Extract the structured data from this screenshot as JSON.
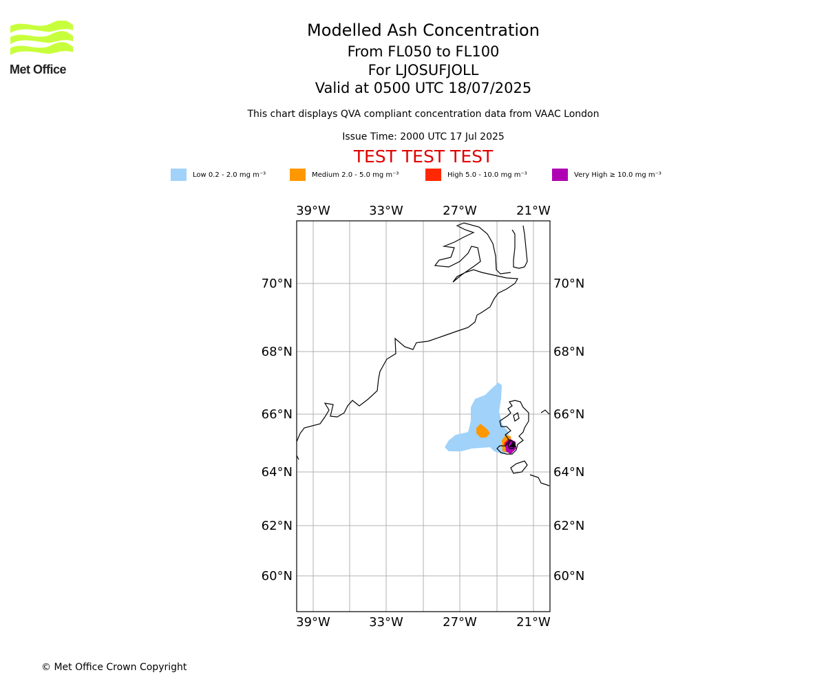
{
  "header": {
    "title_line1": "Modelled Ash Concentration",
    "title_line2": "From FL050 to FL100",
    "title_line3": "For LJOSUFJOLL",
    "title_line4": "Valid at 0500 UTC 18/07/2025",
    "qva_note": "This chart displays QVA compliant concentration data from VAAC London",
    "issue_time": "Issue Time: 2000 UTC 17 Jul 2025",
    "test_banner": "TEST TEST TEST"
  },
  "logo": {
    "text": "Met Office",
    "color": "#c8ff3c"
  },
  "legend": [
    {
      "label": "Low 0.2 - 2.0 mg m⁻³",
      "color": "#a0d2fa"
    },
    {
      "label": "Medium 2.0 - 5.0 mg m⁻³",
      "color": "#ff9800"
    },
    {
      "label": "High 5.0 - 10.0 mg m⁻³",
      "color": "#ff2800"
    },
    {
      "label": "Very High ≥ 10.0 mg m⁻³",
      "color": "#b000b4"
    }
  ],
  "map": {
    "lon_ticks": [
      "39°W",
      "33°W",
      "27°W",
      "21°W"
    ],
    "lat_ticks": [
      "70°N",
      "68°N",
      "66°N",
      "64°N",
      "62°N",
      "60°N"
    ],
    "volcano": "LJOSUFJOLL"
  },
  "footer": {
    "copyright": "© Met Office Crown Copyright"
  }
}
